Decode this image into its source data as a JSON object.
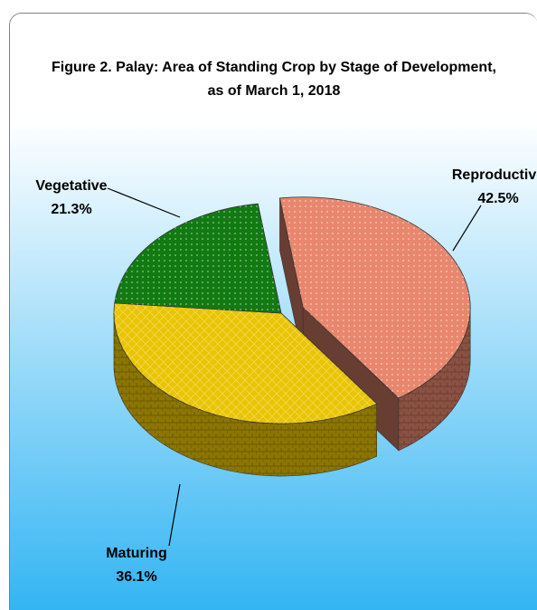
{
  "chart_data": {
    "type": "pie",
    "title_line1": "Figure 2. Palay: Area of Standing Crop by Stage of Development,",
    "title_line2": "as of  March 1, 2018",
    "slices": [
      {
        "label": "Reproductive",
        "value": 42.5,
        "value_label": "42.5%",
        "color": "#e8876e"
      },
      {
        "label": "Maturing",
        "value": 36.1,
        "value_label": "36.1%",
        "color": "#e9c400"
      },
      {
        "label": "Vegetative",
        "value": 21.3,
        "value_label": "21.3%",
        "color": "#117a11"
      }
    ],
    "exploded": "Reproductive",
    "style": "3d",
    "legend": "none",
    "background": [
      "#ffffff",
      "#33b5f3"
    ]
  }
}
